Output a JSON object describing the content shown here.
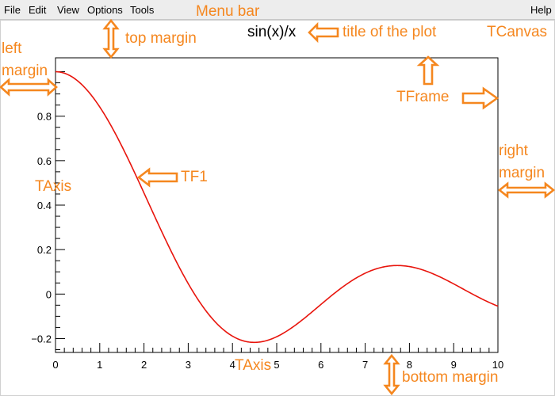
{
  "menu": {
    "file": "File",
    "edit": "Edit",
    "view": "View",
    "options": "Options",
    "tools": "Tools",
    "help": "Help"
  },
  "plot": {
    "title": "sin(x)/x"
  },
  "annotations": {
    "menu_bar": "Menu bar",
    "top_margin": "top margin",
    "title_of_plot": "title of the plot",
    "tcanvas": "TCanvas",
    "left_margin_1": "left",
    "left_margin_2": "margin",
    "tframe": "TFrame",
    "tf1": "TF1",
    "taxis_y": "TAxis",
    "right_margin_1": "right",
    "right_margin_2": "margin",
    "taxis_x": "TAxis",
    "bottom_margin": "bottom margin"
  },
  "colors": {
    "annotation": "#f5871f",
    "curve": "#e8140c",
    "axis": "#000000"
  },
  "chart_data": {
    "type": "line",
    "title": "sin(x)/x",
    "function": "sin(x)/x",
    "xlim": [
      0,
      10
    ],
    "ylim": [
      -0.2625,
      1.0625
    ],
    "x_ticks": [
      "0",
      "1",
      "2",
      "3",
      "4",
      "5",
      "6",
      "7",
      "8",
      "9",
      "10"
    ],
    "y_ticks": [
      "−0.2",
      "0",
      "0.2",
      "0.4",
      "0.6",
      "0.8"
    ],
    "y_tick_values": [
      -0.2,
      0,
      0.2,
      0.4,
      0.6,
      0.8
    ],
    "series": [
      {
        "x": [
          0,
          0.5,
          1,
          1.5,
          2,
          2.5,
          3,
          3.5,
          4,
          4.5,
          5,
          5.5,
          6,
          6.5,
          7,
          7.5,
          8,
          8.5,
          9,
          9.5,
          10
        ],
        "y": [
          1.0,
          0.959,
          0.841,
          0.665,
          0.455,
          0.239,
          0.047,
          -0.1,
          -0.189,
          -0.217,
          -0.192,
          -0.128,
          -0.047,
          0.033,
          0.094,
          0.125,
          0.124,
          0.094,
          0.046,
          -0.008,
          -0.054
        ]
      }
    ],
    "grid": false
  }
}
